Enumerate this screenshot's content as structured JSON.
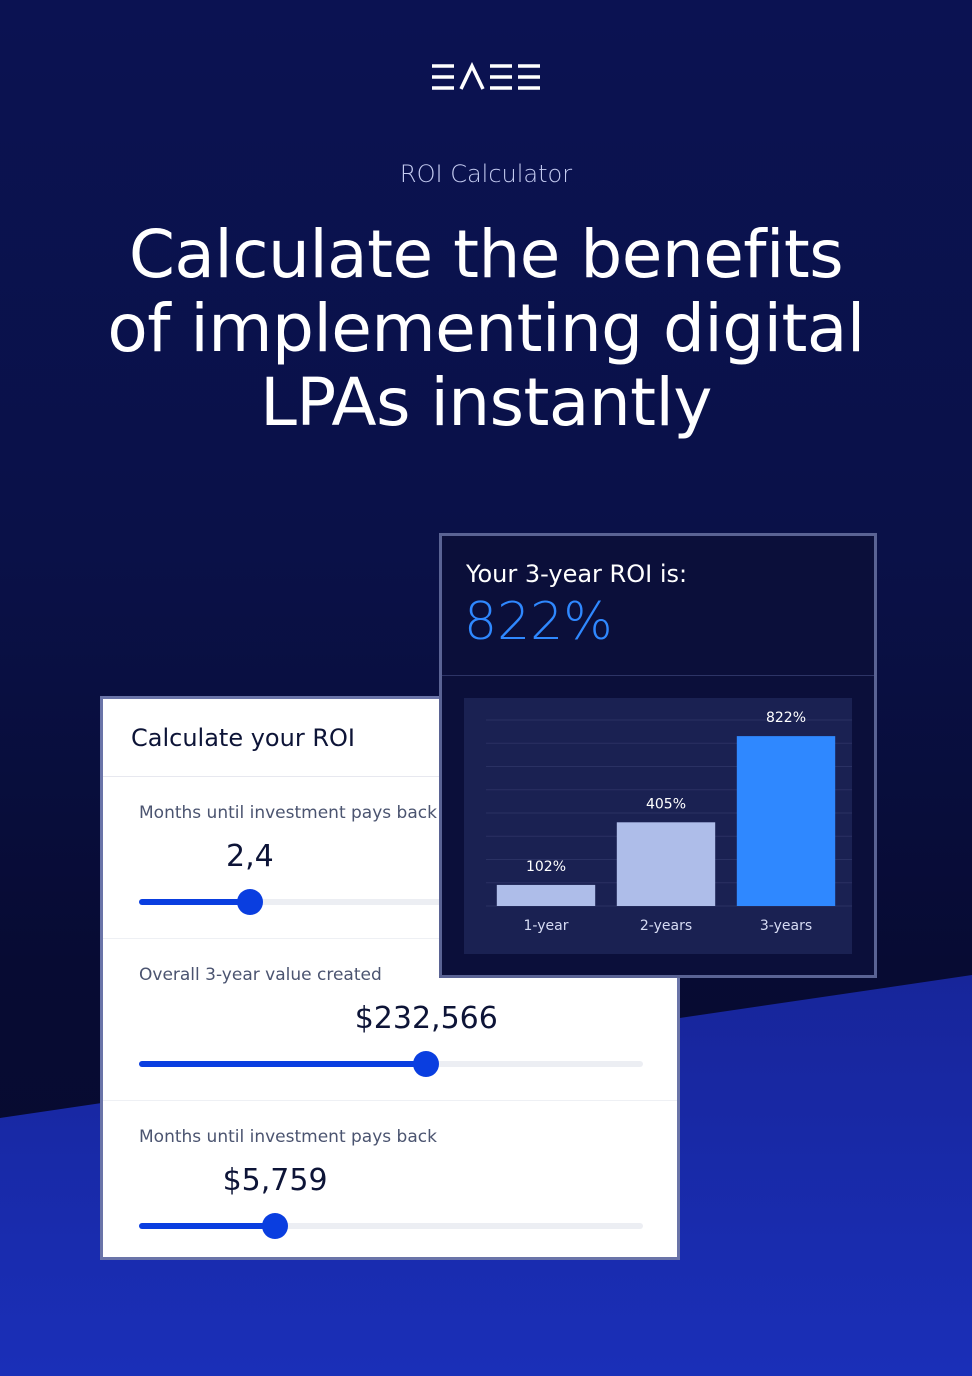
{
  "brand": {
    "logo_text": "EASE"
  },
  "hero": {
    "eyebrow": "ROI Calculator",
    "headline_line1": "Calculate the benefits",
    "headline_line2": "of implementing digital",
    "headline_line3": "LPAs instantly"
  },
  "calculator": {
    "title": "Calculate your ROI",
    "fields": [
      {
        "label": "Months until investment pays back",
        "value": "2,4",
        "slider_fraction": 0.22
      },
      {
        "label": "Overall 3-year value created",
        "value": "$232,566",
        "slider_fraction": 0.57
      },
      {
        "label": "Months until investment pays back",
        "value": "$5,759",
        "slider_fraction": 0.27
      }
    ],
    "accent_color": "#0a3ee0"
  },
  "roi": {
    "label": "Your 3-year ROI is:",
    "value": "822%",
    "accent_color": "#2f88ff"
  },
  "chart_data": {
    "type": "bar",
    "categories": [
      "1-year",
      "2-years",
      "3-years"
    ],
    "values": [
      102,
      405,
      822
    ],
    "data_labels": [
      "102%",
      "405%",
      "822%"
    ],
    "ylim": [
      0,
      900
    ],
    "grid": true,
    "colors": [
      "#aebde9",
      "#aebde9",
      "#2f88ff"
    ]
  }
}
